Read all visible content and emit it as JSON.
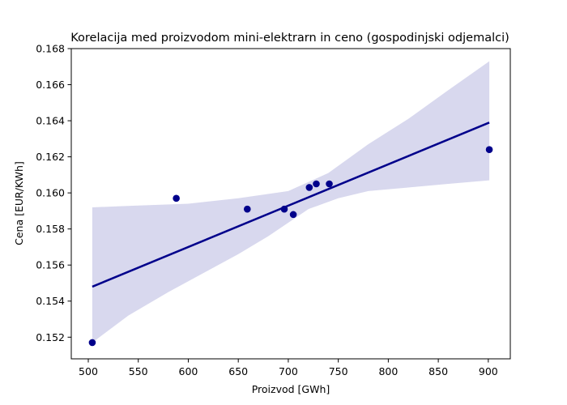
{
  "chart_data": {
    "type": "scatter",
    "title": "Korelacija med proizvodom mini-elektrarn in ceno (gospodinjski odjemalci)",
    "xlabel": "Proizvod [GWh]",
    "ylabel": "Cena [EUR/KWh]",
    "xlim": [
      483,
      922
    ],
    "ylim": [
      0.1508,
      0.168
    ],
    "xticks": [
      500,
      550,
      600,
      650,
      700,
      750,
      800,
      850,
      900
    ],
    "yticks": [
      0.152,
      0.154,
      0.156,
      0.158,
      0.16,
      0.162,
      0.164,
      0.166,
      0.168
    ],
    "grid": false,
    "points": [
      {
        "x": 504,
        "y": 0.1517
      },
      {
        "x": 588,
        "y": 0.1597
      },
      {
        "x": 659,
        "y": 0.1591
      },
      {
        "x": 696,
        "y": 0.1591
      },
      {
        "x": 705,
        "y": 0.1588
      },
      {
        "x": 721,
        "y": 0.1603
      },
      {
        "x": 728,
        "y": 0.1605
      },
      {
        "x": 741,
        "y": 0.1605
      },
      {
        "x": 901,
        "y": 0.1624
      }
    ],
    "regression_line": [
      {
        "x": 504,
        "y": 0.1548
      },
      {
        "x": 901,
        "y": 0.1639
      }
    ],
    "confidence_band": {
      "upper": [
        {
          "x": 504,
          "y": 0.1592
        },
        {
          "x": 550,
          "y": 0.1593
        },
        {
          "x": 600,
          "y": 0.1594
        },
        {
          "x": 650,
          "y": 0.1597
        },
        {
          "x": 700,
          "y": 0.1601
        },
        {
          "x": 740,
          "y": 0.1611
        },
        {
          "x": 780,
          "y": 0.1627
        },
        {
          "x": 820,
          "y": 0.1641
        },
        {
          "x": 860,
          "y": 0.1657
        },
        {
          "x": 901,
          "y": 0.1673
        }
      ],
      "lower": [
        {
          "x": 901,
          "y": 0.1607
        },
        {
          "x": 860,
          "y": 0.1605
        },
        {
          "x": 820,
          "y": 0.1603
        },
        {
          "x": 780,
          "y": 0.1601
        },
        {
          "x": 750,
          "y": 0.1597
        },
        {
          "x": 720,
          "y": 0.1591
        },
        {
          "x": 680,
          "y": 0.1576
        },
        {
          "x": 650,
          "y": 0.1566
        },
        {
          "x": 620,
          "y": 0.1557
        },
        {
          "x": 580,
          "y": 0.1545
        },
        {
          "x": 540,
          "y": 0.1532
        },
        {
          "x": 504,
          "y": 0.1517
        }
      ]
    },
    "colors": {
      "points": "#00008b",
      "line": "#00008b",
      "band": "#d8d8ee"
    }
  }
}
